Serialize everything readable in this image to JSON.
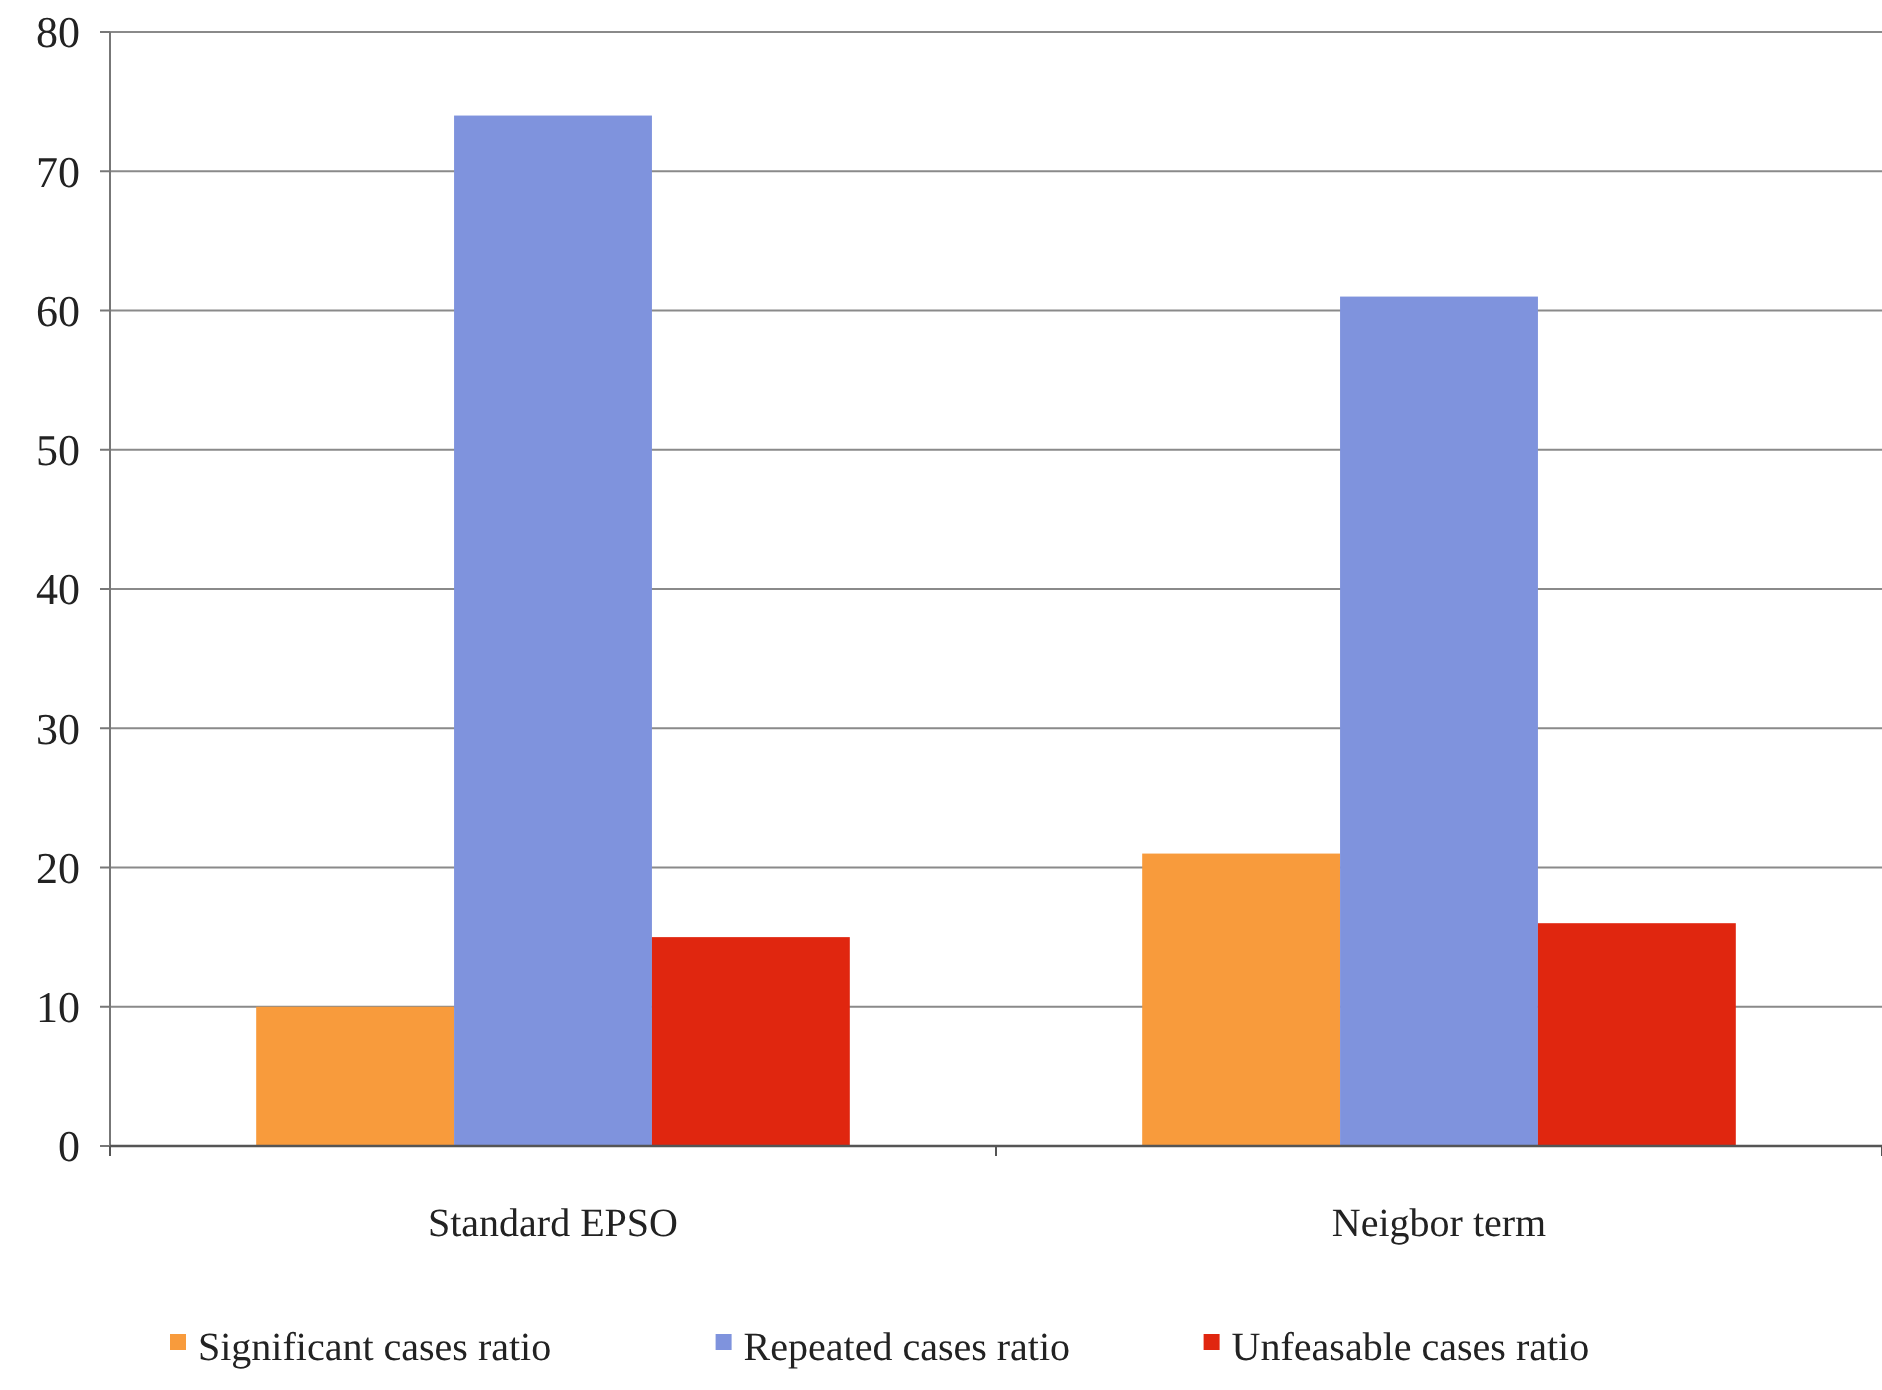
{
  "chart_data": {
    "type": "bar",
    "categories": [
      "Standard EPSO",
      "Neigbor term"
    ],
    "series": [
      {
        "name": "Significant cases ratio",
        "color": "#f89b3c",
        "values": [
          10,
          21
        ]
      },
      {
        "name": "Repeated cases ratio",
        "color": "#7f93dd",
        "values": [
          74,
          61
        ]
      },
      {
        "name": "Unfeasable cases ratio",
        "color": "#e0260f",
        "values": [
          15,
          16
        ]
      }
    ],
    "ylim": [
      0,
      80
    ],
    "yticks": [
      0,
      10,
      20,
      30,
      40,
      50,
      60,
      70,
      80
    ],
    "grid": "y",
    "legend": "bottom"
  }
}
